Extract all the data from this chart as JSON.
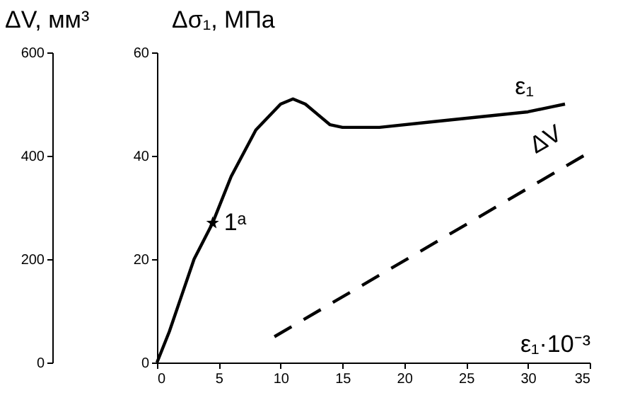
{
  "chart_data": {
    "type": "line",
    "ylabel": "ΔV, мм³",
    "y2label": "Δσ₁, МПа",
    "xlabel": "ε₁·10⁻³",
    "xlim": [
      0,
      35
    ],
    "xticks": [
      0,
      5,
      10,
      15,
      20,
      25,
      30,
      35
    ],
    "ylim": [
      0,
      600
    ],
    "yticks": [
      0,
      200,
      400,
      600
    ],
    "y2lim": [
      0,
      60
    ],
    "y2ticks": [
      0,
      20,
      40,
      60
    ],
    "grid": false,
    "series": [
      {
        "name": "ε₁",
        "color": "#000000",
        "axis": "y2",
        "line_style": "solid",
        "x": [
          0,
          1,
          2,
          3,
          4.5,
          6,
          8,
          10,
          11,
          12,
          13,
          14,
          15,
          18,
          22,
          26,
          30,
          32,
          33
        ],
        "values": [
          0,
          6,
          13,
          20,
          27,
          36,
          45,
          50,
          51,
          50,
          48,
          46,
          45.5,
          45.5,
          46.5,
          47.5,
          48.5,
          49.5,
          50
        ]
      },
      {
        "name": "ΔV",
        "color": "#000000",
        "axis": "y",
        "line_style": "dashed",
        "x": [
          9.5,
          34.5
        ],
        "values": [
          50,
          400
        ]
      },
      {
        "type": "scatter",
        "marker": "star",
        "color": "#000000",
        "axis": "y2",
        "x": [
          4.5
        ],
        "values": [
          27
        ]
      }
    ],
    "annotations": [
      "1ᵃ"
    ]
  }
}
